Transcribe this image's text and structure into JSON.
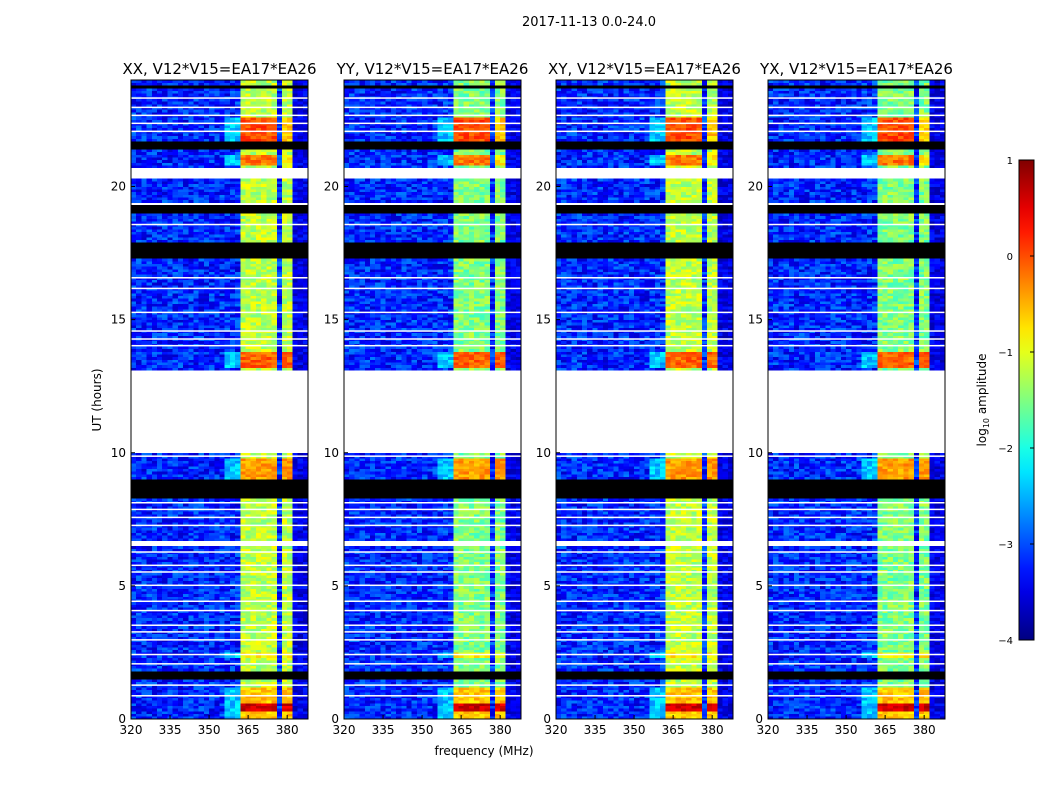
{
  "chart_data": {
    "type": "heatmap",
    "suptitle": "2017-11-13 0.0-24.0",
    "xlabel": "frequency (MHz)",
    "ylabel": "UT (hours)",
    "xlim": [
      320,
      388
    ],
    "ylim": [
      0,
      24
    ],
    "xticks": [
      320,
      335,
      350,
      365,
      380
    ],
    "yticks": [
      0,
      5,
      10,
      15,
      20
    ],
    "panels": [
      {
        "title": "XX, V12*V15=EA17*EA26",
        "seed": 11
      },
      {
        "title": "YY, V12*V15=EA17*EA26",
        "seed": 23
      },
      {
        "title": "XY, V12*V15=EA17*EA26",
        "seed": 37
      },
      {
        "title": "YX, V12*V15=EA17*EA26",
        "seed": 53
      }
    ],
    "colorbar": {
      "label": "log10 amplitude",
      "label_main": "log",
      "label_sub": "10",
      "label_tail": " amplitude",
      "colormap": "jet",
      "range": [
        -4,
        1
      ],
      "ticks": [
        "1",
        "0",
        "−1",
        "−2",
        "−3",
        "−4"
      ]
    },
    "background_level": -3.2,
    "bright_channels_mhz": [
      [
        363,
        367.5
      ],
      [
        368,
        372.5
      ],
      [
        373,
        377
      ],
      [
        378,
        382
      ]
    ],
    "bright_level": -1.2,
    "missing_hours": [
      [
        10.0,
        13.05
      ],
      [
        20.35,
        20.7
      ],
      [
        6.45,
        6.7
      ],
      [
        19.3,
        19.45
      ],
      [
        1.5,
        1.55
      ]
    ],
    "flagged_hours": [
      [
        8.3,
        9.0
      ],
      [
        1.55,
        1.8
      ],
      [
        17.3,
        17.9
      ],
      [
        19.0,
        19.3
      ],
      [
        21.4,
        21.75
      ],
      [
        23.7,
        23.8
      ]
    ],
    "thin_gap_hours": [
      0.9,
      1.3,
      2.1,
      2.45,
      3.0,
      3.3,
      3.55,
      4.1,
      4.45,
      5.05,
      5.55,
      5.8,
      6.3,
      7.3,
      7.6,
      7.9,
      8.15,
      9.9,
      14.05,
      14.3,
      14.6,
      15.3,
      16.2,
      16.6,
      18.6,
      22.1,
      22.4,
      22.7,
      23.0,
      23.35
    ],
    "hot_intervals": [
      {
        "hours": [
          0.3,
          0.65
        ],
        "level": 0.6
      },
      {
        "hours": [
          0.0,
          1.2
        ],
        "level": -0.6
      },
      {
        "hours": [
          13.2,
          13.8
        ],
        "level": -0.1
      },
      {
        "hours": [
          21.75,
          22.6
        ],
        "level": 0.0
      },
      {
        "hours": [
          20.8,
          21.2
        ],
        "level": -0.2
      },
      {
        "hours": [
          9.0,
          9.8
        ],
        "level": -0.4
      },
      {
        "hours": [
          2.3,
          2.5
        ],
        "level": -0.8
      }
    ]
  }
}
